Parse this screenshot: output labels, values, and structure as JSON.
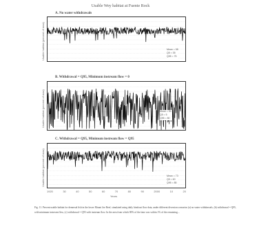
{
  "figure": {
    "title": "Usable Wey habitat at Fuente Rock",
    "x_label": "Years",
    "caption": "Fig. 11. Percent usable habitat for demersal fish in the lower Mount Joe Reef, simulated using daily hindcast flow data, under different diversion scenarios (a) no water withdrawals, (b) withdrawal = Q95, with minimum instream flow, (c) withdrawal = Q95 with instream flow. In the area from which 80% of the time was within 1% of the remaining..."
  },
  "chart_data": [
    {
      "type": "line",
      "panel_label": "A. No water withdrawals",
      "ylabel": "Usable habitat (percent of max)",
      "ylim": [
        0,
        100
      ],
      "legend": [
        "Mean = 58",
        "Q5 = 35",
        "Q95 = 75"
      ],
      "baseline": 70,
      "variability": "low"
    },
    {
      "type": "line",
      "panel_label": "B. Withdrawal = Q95, Minimum instream flow = 0",
      "ylabel": "Usable habitat (percent of max)",
      "ylim": [
        0,
        100
      ],
      "legend": [
        "Mean = 50",
        "Q5 = 5",
        "Q95 = 80"
      ],
      "baseline": 55,
      "variability": "high"
    },
    {
      "type": "line",
      "panel_label": "C. Withdrawal = Q95, Minimum instream flow = Q95",
      "ylabel": "Usable habitat (percent of max)",
      "ylim": [
        0,
        100
      ],
      "legend": [
        "Mean = 73",
        "Q5 = 60",
        "Q95 = 85"
      ],
      "baseline": 73,
      "variability": "medium"
    }
  ],
  "x_ticks": [
    "1920",
    "30",
    "40",
    "50",
    "60",
    "70",
    "80",
    "90",
    "2000",
    "10",
    "20"
  ]
}
